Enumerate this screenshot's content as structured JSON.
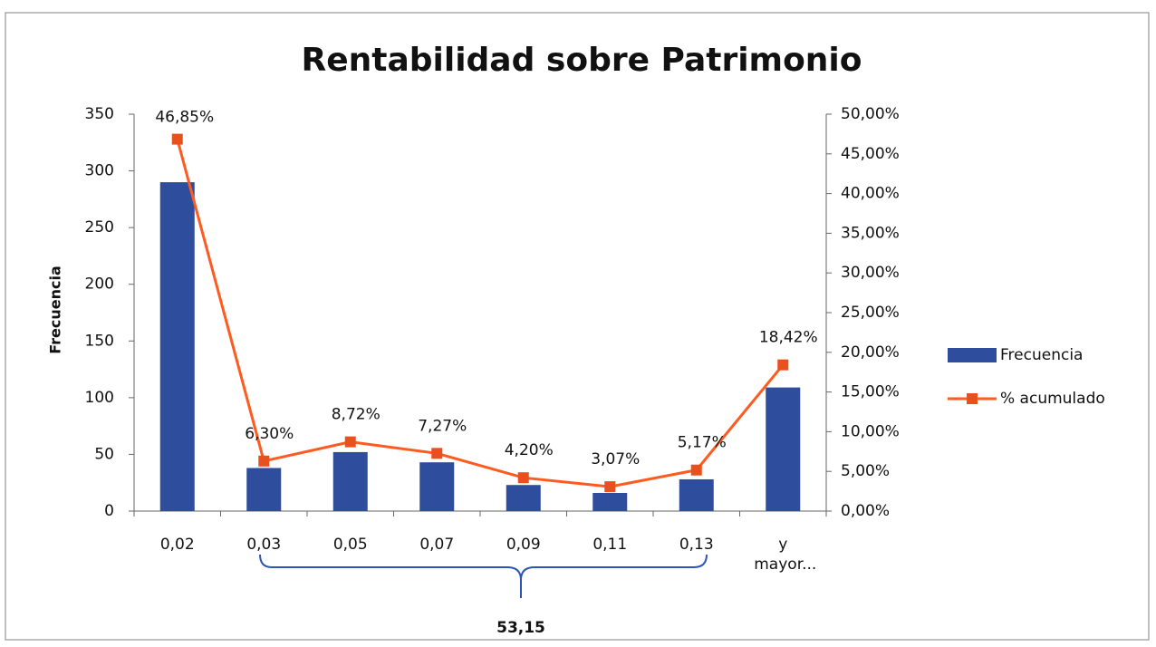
{
  "chart_data": {
    "type": "bar_line",
    "title": "Rentabilidad sobre Patrimonio",
    "y_label": "Frecuencia",
    "categories": [
      "0,02",
      "0,03",
      "0,05",
      "0,07",
      "0,09",
      "0,11",
      "0,13",
      "y mayor..."
    ],
    "series": [
      {
        "name": "Frecuencia",
        "type": "bar",
        "color": "#2e4d9c",
        "values": [
          290,
          38,
          52,
          43,
          23,
          16,
          28,
          109
        ]
      },
      {
        "name": "% acumulado",
        "type": "line",
        "axis": "y2",
        "color": "#ff5a1f",
        "values": [
          46.85,
          6.3,
          8.72,
          7.27,
          4.2,
          3.07,
          5.17,
          18.42
        ],
        "value_labels": [
          "46,85%",
          "6,30%",
          "8,72%",
          "7,27%",
          "4,20%",
          "3,07%",
          "5,17%",
          "18,42%"
        ]
      }
    ],
    "ylim": [
      0,
      350
    ],
    "yticks": [
      0,
      50,
      100,
      150,
      200,
      250,
      300,
      350
    ],
    "y2lim": [
      0,
      50
    ],
    "y2ticks": [
      {
        "value": 0,
        "label": "0,00%"
      },
      {
        "value": 5,
        "label": "5,00%"
      },
      {
        "value": 10,
        "label": "10,00%"
      },
      {
        "value": 15,
        "label": "15,00%"
      },
      {
        "value": 20,
        "label": "20,00%"
      },
      {
        "value": 25,
        "label": "25,00%"
      },
      {
        "value": 30,
        "label": "30,00%"
      },
      {
        "value": 35,
        "label": "35,00%"
      },
      {
        "value": 40,
        "label": "40,00%"
      },
      {
        "value": 45,
        "label": "45,00%"
      },
      {
        "value": 50,
        "label": "50,00%"
      }
    ],
    "legend": "right",
    "annotation": "53,15"
  }
}
